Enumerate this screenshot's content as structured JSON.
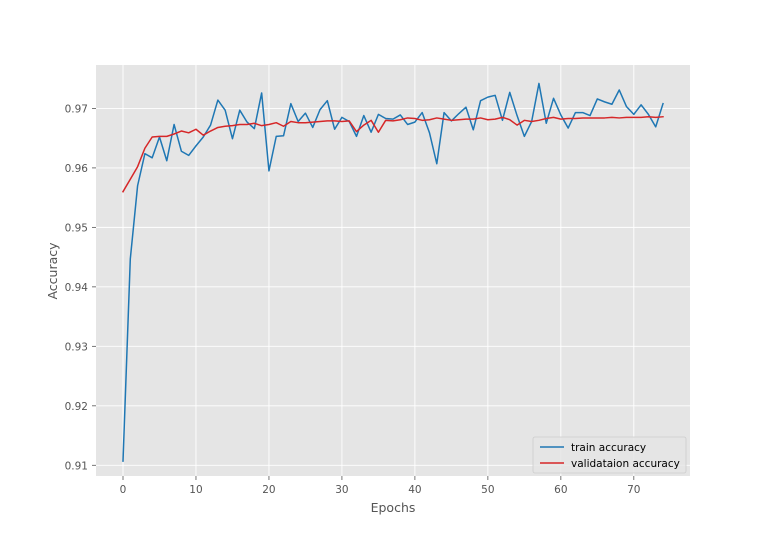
{
  "chart_data": {
    "type": "line",
    "title": "",
    "xlabel": "Epochs",
    "ylabel": "Accuracy",
    "xlim": [
      -3.7,
      77.7
    ],
    "ylim": [
      0.9082,
      0.9773
    ],
    "xticks": [
      0,
      10,
      20,
      30,
      40,
      50,
      60,
      70
    ],
    "yticks": [
      0.91,
      0.92,
      0.93,
      0.94,
      0.95,
      0.96,
      0.97
    ],
    "xtick_labels": [
      "0",
      "10",
      "20",
      "30",
      "40",
      "50",
      "60",
      "70"
    ],
    "ytick_labels": [
      "0.91",
      "0.92",
      "0.93",
      "0.94",
      "0.95",
      "0.96",
      "0.97"
    ],
    "grid": true,
    "legend_position": "lower-right",
    "x": [
      0,
      1,
      2,
      3,
      4,
      5,
      6,
      7,
      8,
      9,
      10,
      11,
      12,
      13,
      14,
      15,
      16,
      17,
      18,
      19,
      20,
      21,
      22,
      23,
      24,
      25,
      26,
      27,
      28,
      29,
      30,
      31,
      32,
      33,
      34,
      35,
      36,
      37,
      38,
      39,
      40,
      41,
      42,
      43,
      44,
      45,
      46,
      47,
      48,
      49,
      50,
      51,
      52,
      53,
      54,
      55,
      56,
      57,
      58,
      59,
      60,
      61,
      62,
      63,
      64,
      65,
      66,
      67,
      68,
      69,
      70,
      71,
      72,
      73,
      74
    ],
    "series": [
      {
        "name": "train accuracy",
        "color": "#1f77b4",
        "values": [
          0.9107,
          0.9447,
          0.957,
          0.9624,
          0.9617,
          0.9652,
          0.9612,
          0.9673,
          0.9628,
          0.9621,
          0.9637,
          0.9652,
          0.9672,
          0.9714,
          0.9697,
          0.9649,
          0.9697,
          0.9677,
          0.9666,
          0.9726,
          0.9595,
          0.9653,
          0.9654,
          0.9708,
          0.9678,
          0.9692,
          0.9668,
          0.9698,
          0.9713,
          0.9665,
          0.9685,
          0.9678,
          0.9653,
          0.9688,
          0.966,
          0.969,
          0.9683,
          0.9682,
          0.9689,
          0.9673,
          0.9677,
          0.9693,
          0.9659,
          0.9607,
          0.9693,
          0.9679,
          0.9691,
          0.9702,
          0.9664,
          0.9713,
          0.9719,
          0.9722,
          0.968,
          0.9727,
          0.9688,
          0.9653,
          0.9678,
          0.9742,
          0.9675,
          0.9717,
          0.9689,
          0.9667,
          0.9693,
          0.9693,
          0.9688,
          0.9716,
          0.9711,
          0.9707,
          0.9731,
          0.9703,
          0.969,
          0.9706,
          0.969,
          0.9669,
          0.9708
        ]
      },
      {
        "name": "validataion accuracy",
        "color": "#d62728",
        "values": [
          0.956,
          0.9581,
          0.9602,
          0.9633,
          0.9652,
          0.9653,
          0.9653,
          0.9657,
          0.9662,
          0.9659,
          0.9665,
          0.9655,
          0.9662,
          0.9668,
          0.967,
          0.9671,
          0.9673,
          0.9673,
          0.9675,
          0.9671,
          0.9673,
          0.9676,
          0.967,
          0.9678,
          0.9676,
          0.9676,
          0.9677,
          0.9678,
          0.9679,
          0.9679,
          0.9678,
          0.9679,
          0.9661,
          0.9672,
          0.968,
          0.966,
          0.968,
          0.9679,
          0.9681,
          0.9684,
          0.9683,
          0.968,
          0.9681,
          0.9684,
          0.9682,
          0.968,
          0.9681,
          0.9682,
          0.9682,
          0.9684,
          0.9681,
          0.9682,
          0.9685,
          0.9681,
          0.9672,
          0.968,
          0.9678,
          0.968,
          0.9683,
          0.9685,
          0.9682,
          0.9683,
          0.9683,
          0.9684,
          0.9684,
          0.9684,
          0.9684,
          0.9685,
          0.9684,
          0.9685,
          0.9685,
          0.9685,
          0.9686,
          0.9685,
          0.9686
        ]
      }
    ]
  }
}
